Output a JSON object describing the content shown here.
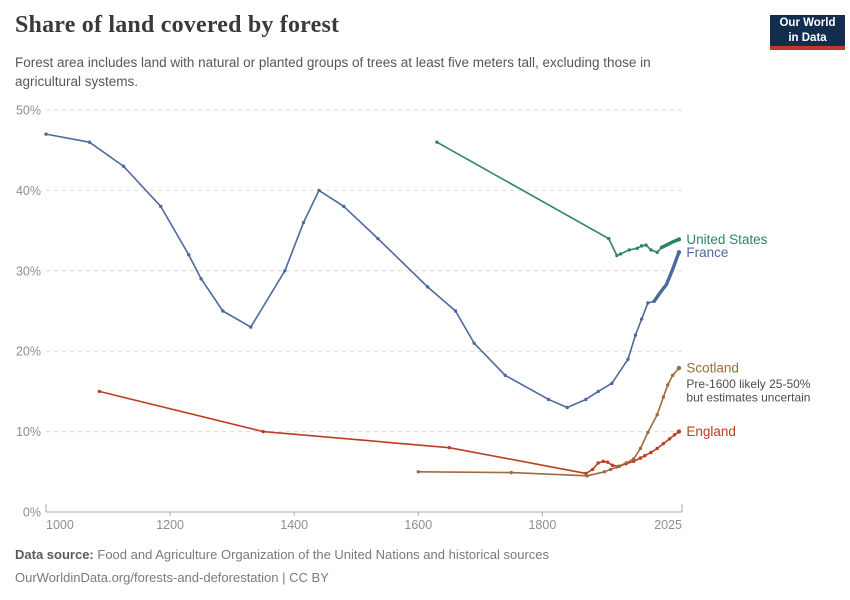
{
  "header": {
    "title": "Share of land covered by forest",
    "subtitle": "Forest area includes land with natural or planted groups of trees at least five meters tall, excluding those in agricultural systems.",
    "logo_line1": "Our World",
    "logo_line2": "in Data"
  },
  "footer": {
    "source_label": "Data source:",
    "source_text": "Food and Agriculture Organization of the United Nations and historical sources",
    "url_line": "OurWorldinData.org/forests-and-deforestation | CC BY"
  },
  "chart_data": {
    "type": "line",
    "title": "Share of land covered by forest",
    "xlabel": "",
    "ylabel": "",
    "xlim": [
      1000,
      2025
    ],
    "ylim": [
      0,
      50
    ],
    "x_ticks": [
      1000,
      1200,
      1400,
      1600,
      1800,
      2025
    ],
    "y_ticks": [
      0,
      10,
      20,
      30,
      40,
      50
    ],
    "y_unit": "%",
    "grid": "horizontal-dashed",
    "legend_position": "end-of-line-labels",
    "colors": {
      "united_states": "#2C8465",
      "france": "#4C6A9C",
      "scotland": "#9E6B3C",
      "england": "#BC3D22"
    },
    "series": [
      {
        "name": "England",
        "label": "England",
        "color": "#BC3D22",
        "points": [
          [
            1086,
            15
          ],
          [
            1350,
            10
          ],
          [
            1650,
            8
          ],
          [
            1870,
            4.8
          ],
          [
            1881,
            5.3
          ],
          [
            1890,
            6.1
          ],
          [
            1898,
            6.3
          ],
          [
            1905,
            6.2
          ],
          [
            1913,
            5.8
          ],
          [
            1924,
            5.7
          ],
          [
            1935,
            6.0
          ],
          [
            1947,
            6.3
          ],
          [
            1958,
            6.7
          ],
          [
            1965,
            7.0
          ],
          [
            1975,
            7.4
          ],
          [
            1985,
            7.9
          ],
          [
            1995,
            8.5
          ],
          [
            2005,
            9.1
          ],
          [
            2013,
            9.6
          ],
          [
            2020,
            10
          ]
        ]
      },
      {
        "name": "Scotland",
        "label": "Scotland",
        "color": "#9E6B3C",
        "annotation_lines": [
          "Pre-1600 likely 25-50%",
          "but estimates uncertain"
        ],
        "points": [
          [
            1600,
            5
          ],
          [
            1750,
            4.9
          ],
          [
            1872,
            4.5
          ],
          [
            1900,
            5.0
          ],
          [
            1910,
            5.3
          ],
          [
            1920,
            5.6
          ],
          [
            1935,
            6.1
          ],
          [
            1947,
            6.6
          ],
          [
            1958,
            7.9
          ],
          [
            1970,
            9.9
          ],
          [
            1985,
            12.1
          ],
          [
            1995,
            14.3
          ],
          [
            2002,
            15.8
          ],
          [
            2010,
            17.0
          ],
          [
            2020,
            17.9
          ]
        ]
      },
      {
        "name": "United States",
        "label": "United States",
        "color": "#2C8465",
        "points": [
          [
            1630,
            46
          ],
          [
            1907,
            34
          ],
          [
            1920,
            31.9
          ],
          [
            1926,
            32.1
          ],
          [
            1940,
            32.6
          ],
          [
            1953,
            32.8
          ],
          [
            1960,
            33.1
          ],
          [
            1967,
            33.2
          ],
          [
            1975,
            32.6
          ],
          [
            1985,
            32.3
          ],
          [
            1992,
            32.9
          ]
        ],
        "recent_points": [
          [
            1992,
            32.9
          ],
          [
            2000,
            33.2
          ],
          [
            2010,
            33.6
          ],
          [
            2020,
            33.9
          ]
        ]
      },
      {
        "name": "France",
        "label": "France",
        "color": "#4C6A9C",
        "points": [
          [
            1000,
            47
          ],
          [
            1070,
            46
          ],
          [
            1125,
            43
          ],
          [
            1185,
            38
          ],
          [
            1230,
            32
          ],
          [
            1250,
            29
          ],
          [
            1285,
            25
          ],
          [
            1330,
            23
          ],
          [
            1385,
            30
          ],
          [
            1415,
            36
          ],
          [
            1440,
            40
          ],
          [
            1480,
            38
          ],
          [
            1535,
            34
          ],
          [
            1615,
            28
          ],
          [
            1660,
            25
          ],
          [
            1690,
            21
          ],
          [
            1740,
            17
          ],
          [
            1810,
            14
          ],
          [
            1840,
            13
          ],
          [
            1870,
            14
          ],
          [
            1890,
            15
          ],
          [
            1912,
            16
          ],
          [
            1938,
            19
          ],
          [
            1950,
            22
          ],
          [
            1960,
            24
          ],
          [
            1970,
            26
          ],
          [
            1980,
            26.2
          ]
        ],
        "recent_points": [
          [
            1980,
            26.2
          ],
          [
            1990,
            27.3
          ],
          [
            2000,
            28.3
          ],
          [
            2010,
            30.2
          ],
          [
            2020,
            32.3
          ]
        ]
      }
    ]
  }
}
